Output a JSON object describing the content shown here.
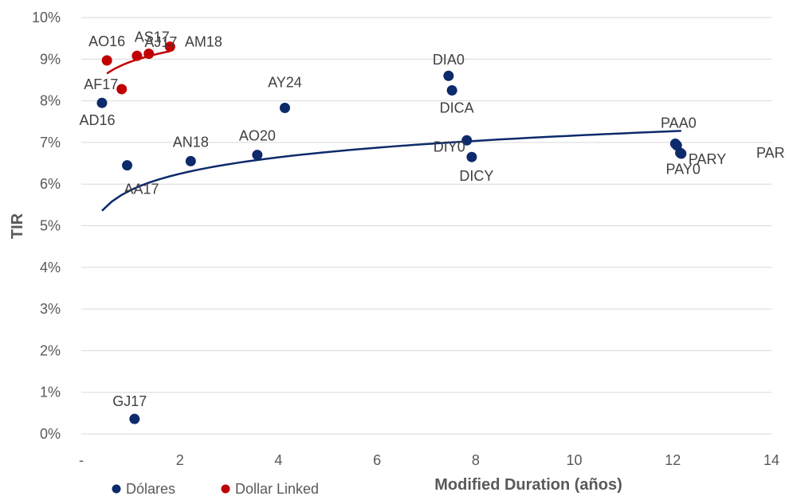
{
  "chart_data": {
    "type": "scatter",
    "xlabel": "Modified Duration (años)",
    "ylabel": "TIR",
    "xlim": [
      0,
      14
    ],
    "ylim": [
      0,
      10
    ],
    "x_ticks": [
      {
        "value": 0,
        "label": "-"
      },
      {
        "value": 2,
        "label": "2"
      },
      {
        "value": 4,
        "label": "4"
      },
      {
        "value": 6,
        "label": "6"
      },
      {
        "value": 8,
        "label": "8"
      },
      {
        "value": 10,
        "label": "10"
      },
      {
        "value": 12,
        "label": "12"
      },
      {
        "value": 14,
        "label": "14"
      }
    ],
    "y_ticks": [
      {
        "value": 0,
        "label": "0%"
      },
      {
        "value": 1,
        "label": "1%"
      },
      {
        "value": 2,
        "label": "2%"
      },
      {
        "value": 3,
        "label": "3%"
      },
      {
        "value": 4,
        "label": "4%"
      },
      {
        "value": 5,
        "label": "5%"
      },
      {
        "value": 6,
        "label": "6%"
      },
      {
        "value": 7,
        "label": "7%"
      },
      {
        "value": 8,
        "label": "8%"
      },
      {
        "value": 9,
        "label": "9%"
      },
      {
        "value": 10,
        "label": "10%"
      }
    ],
    "grid": "horizontal",
    "legend_position": "bottom-left",
    "series": [
      {
        "name": "Dólares",
        "color": "#0d2a6b",
        "points": [
          {
            "label": "AD16",
            "x": 0.42,
            "y": 7.95
          },
          {
            "label": "AA17",
            "x": 0.93,
            "y": 6.45
          },
          {
            "label": "GJ17",
            "x": 1.08,
            "y": 0.36
          },
          {
            "label": "AN18",
            "x": 2.22,
            "y": 6.55
          },
          {
            "label": "AO20",
            "x": 3.57,
            "y": 6.7
          },
          {
            "label": "AY24",
            "x": 4.13,
            "y": 7.83
          },
          {
            "label": "DIA0",
            "x": 7.45,
            "y": 8.6
          },
          {
            "label": "DICA",
            "x": 7.52,
            "y": 8.25
          },
          {
            "label": "DIY0",
            "x": 7.82,
            "y": 7.05
          },
          {
            "label": "DICY",
            "x": 7.92,
            "y": 6.65
          },
          {
            "label": "PAA0",
            "x": 12.05,
            "y": 6.97
          },
          {
            "label": "PAY0",
            "x": 12.08,
            "y": 6.93
          },
          {
            "label": "PARY",
            "x": 12.15,
            "y": 6.75
          },
          {
            "label": "PARA",
            "x": 12.17,
            "y": 6.73
          }
        ],
        "trendline": {
          "type": "logarithmic",
          "x_from": 0.42,
          "x_to": 12.17
        }
      },
      {
        "name": "Dollar Linked",
        "color": "#c00000",
        "points": [
          {
            "label": "AO16",
            "x": 0.52,
            "y": 8.97
          },
          {
            "label": "AF17",
            "x": 0.82,
            "y": 8.28
          },
          {
            "label": "AJ17",
            "x": 1.13,
            "y": 9.08
          },
          {
            "label": "AS17",
            "x": 1.37,
            "y": 9.13
          },
          {
            "label": "AM18",
            "x": 1.8,
            "y": 9.3
          }
        ],
        "trendline": {
          "type": "logarithmic",
          "x_from": 0.52,
          "x_to": 1.8
        }
      }
    ]
  }
}
